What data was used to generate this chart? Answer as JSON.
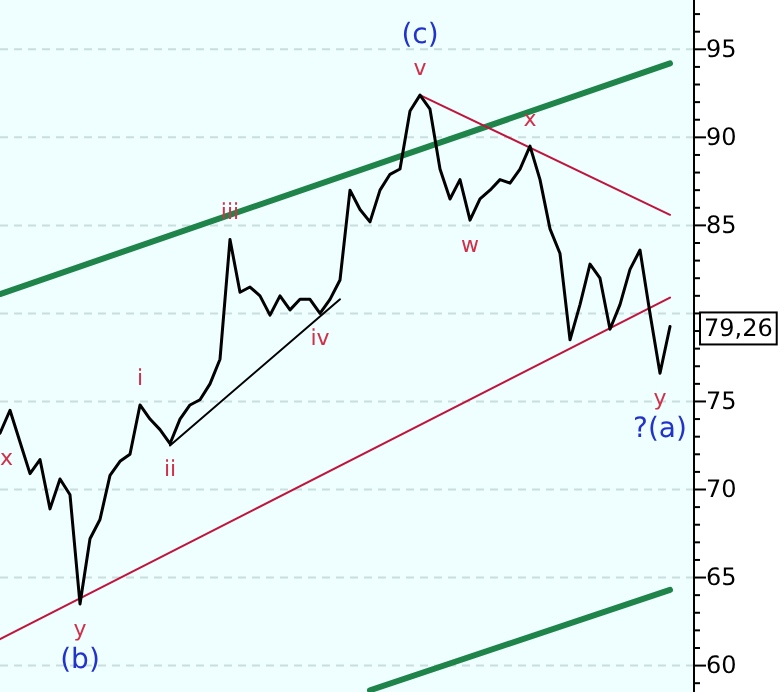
{
  "chart_data": {
    "type": "line",
    "categories": [
      null,
      null,
      null,
      null,
      null,
      null,
      null,
      null,
      null,
      null,
      null,
      null,
      null,
      null,
      null,
      null,
      null,
      null,
      null,
      null,
      null,
      null,
      null,
      null,
      null,
      null,
      null,
      null,
      null,
      null,
      null,
      null,
      null,
      null,
      null,
      null,
      null,
      null,
      null,
      null,
      null,
      null,
      null,
      null,
      null,
      null,
      null,
      null,
      null,
      null,
      null,
      null,
      null,
      null,
      null,
      null,
      null,
      null,
      null,
      null,
      null,
      null,
      null,
      null,
      null,
      null,
      null,
      null
    ],
    "ylim": [
      58.5,
      97.8
    ],
    "yticks": [
      {
        "value": 59,
        "label": null
      },
      60,
      {
        "value": 61,
        "label": null
      },
      {
        "value": 62,
        "label": null
      },
      {
        "value": 63,
        "label": null
      },
      {
        "value": 64,
        "label": null
      },
      65,
      {
        "value": 66,
        "label": null
      },
      {
        "value": 67,
        "label": null
      },
      {
        "value": 68,
        "label": null
      },
      {
        "value": 69,
        "label": null
      },
      70,
      {
        "value": 71,
        "label": null
      },
      {
        "value": 72,
        "label": null
      },
      {
        "value": 73,
        "label": null
      },
      {
        "value": 74,
        "label": null
      },
      75,
      {
        "value": 76,
        "label": null
      },
      {
        "value": 77,
        "label": null
      },
      {
        "value": 78,
        "label": null
      },
      {
        "value": 79,
        "label": null
      },
      {
        "value": 80,
        "label": null
      },
      {
        "value": 81,
        "label": null
      },
      {
        "value": 82,
        "label": null
      },
      {
        "value": 83,
        "label": null
      },
      {
        "value": 84,
        "label": null
      },
      85,
      {
        "value": 86,
        "label": null
      },
      {
        "value": 87,
        "label": null
      },
      {
        "value": 88,
        "label": null
      },
      {
        "value": 89,
        "label": null
      },
      90,
      {
        "value": 91,
        "label": null
      },
      {
        "value": 92,
        "label": null
      },
      {
        "value": 93,
        "label": null
      },
      {
        "value": 94,
        "label": null
      },
      95,
      {
        "value": 96,
        "label": null
      },
      {
        "value": 97,
        "label": null
      }
    ],
    "tick_labels": "y",
    "grid": "y",
    "series": [
      {
        "color": "#000000",
        "values": [
          73.2,
          74.5,
          72.7,
          70.9,
          71.7,
          68.9,
          70.6,
          69.7,
          63.5,
          67.2,
          68.3,
          70.8,
          71.6,
          72.0,
          74.8,
          74.0,
          73.4,
          72.6,
          74.0,
          74.8,
          75.1,
          76.0,
          77.4,
          84.2,
          81.2,
          81.5,
          81.0,
          79.9,
          81.0,
          80.2,
          80.8,
          80.8,
          80.0,
          80.8,
          81.9,
          87.0,
          85.9,
          85.2,
          87.0,
          87.9,
          88.2,
          91.5,
          92.4,
          91.6,
          88.2,
          86.5,
          87.6,
          85.3,
          86.5,
          87.0,
          87.6,
          87.4,
          88.2,
          89.5,
          87.6,
          84.8,
          83.4,
          78.5,
          80.5,
          82.8,
          82.0,
          79.1,
          80.5,
          82.5,
          83.6,
          80.0,
          76.6,
          79.26
        ],
        "value_labels": [
          "x",
          null,
          null,
          null,
          null,
          null,
          null,
          null,
          "y\n(b)",
          null,
          null,
          null,
          null,
          null,
          "i",
          null,
          null,
          "ii",
          null,
          null,
          null,
          null,
          null,
          "iii",
          null,
          null,
          null,
          null,
          null,
          null,
          null,
          null,
          "iv",
          null,
          null,
          null,
          null,
          null,
          null,
          null,
          null,
          null,
          "(c)\nv",
          null,
          null,
          null,
          null,
          "w",
          null,
          null,
          null,
          null,
          null,
          "x",
          null,
          null,
          null,
          null,
          null,
          null,
          null,
          null,
          null,
          null,
          null,
          null,
          "y\n?(a)",
          null
        ]
      },
      {
        "type": "line",
        "color": "#1e8449",
        "values": [
          81.1,
          null,
          null,
          null,
          null,
          null,
          null,
          null,
          null,
          null,
          null,
          null,
          null,
          null,
          null,
          null,
          null,
          null,
          null,
          null,
          null,
          null,
          null,
          null,
          null,
          null,
          null,
          null,
          null,
          null,
          null,
          null,
          null,
          null,
          null,
          null,
          null,
          null,
          null,
          null,
          null,
          null,
          null,
          null,
          null,
          null,
          null,
          null,
          null,
          null,
          null,
          null,
          null,
          null,
          null,
          null,
          null,
          null,
          null,
          null,
          null,
          null,
          null,
          null,
          null,
          null,
          null,
          94.2
        ]
      },
      {
        "type": "line",
        "color": "#1e8449",
        "values": [
          null,
          null,
          null,
          null,
          null,
          null,
          null,
          null,
          null,
          null,
          null,
          null,
          null,
          null,
          null,
          null,
          null,
          null,
          null,
          null,
          null,
          null,
          null,
          null,
          null,
          null,
          null,
          null,
          null,
          null,
          null,
          null,
          null,
          null,
          null,
          null,
          null,
          58.6,
          null,
          null,
          null,
          null,
          null,
          null,
          null,
          null,
          null,
          null,
          null,
          null,
          null,
          null,
          null,
          null,
          null,
          null,
          null,
          null,
          null,
          null,
          null,
          null,
          null,
          null,
          null,
          null,
          null,
          64.3
        ]
      },
      {
        "type": "line",
        "color": "#c0143c",
        "values": [
          61.5,
          null,
          null,
          null,
          null,
          null,
          null,
          null,
          null,
          null,
          null,
          null,
          null,
          null,
          null,
          null,
          null,
          null,
          null,
          null,
          null,
          null,
          null,
          null,
          null,
          null,
          null,
          null,
          null,
          null,
          null,
          null,
          null,
          null,
          null,
          null,
          null,
          null,
          null,
          null,
          null,
          null,
          null,
          null,
          null,
          null,
          null,
          null,
          null,
          null,
          null,
          null,
          null,
          null,
          null,
          null,
          null,
          null,
          null,
          null,
          null,
          null,
          null,
          null,
          null,
          null,
          null,
          80.9
        ]
      },
      {
        "type": "line",
        "color": "#c0143c",
        "values": [
          null,
          null,
          null,
          null,
          null,
          null,
          null,
          null,
          null,
          null,
          null,
          null,
          null,
          null,
          null,
          null,
          null,
          null,
          null,
          null,
          null,
          null,
          null,
          null,
          null,
          null,
          null,
          null,
          null,
          null,
          null,
          null,
          null,
          null,
          null,
          null,
          null,
          null,
          null,
          null,
          null,
          null,
          92.4,
          null,
          null,
          null,
          null,
          null,
          null,
          null,
          null,
          null,
          null,
          null,
          null,
          null,
          null,
          null,
          null,
          null,
          null,
          null,
          null,
          null,
          null,
          null,
          null,
          85.6
        ]
      },
      {
        "type": "line",
        "color": "#000000",
        "values": [
          null,
          null,
          null,
          null,
          null,
          null,
          null,
          null,
          null,
          null,
          null,
          null,
          null,
          null,
          null,
          null,
          null,
          72.5,
          null,
          null,
          null,
          null,
          null,
          null,
          null,
          null,
          null,
          null,
          null,
          null,
          null,
          null,
          null,
          null,
          80.8,
          null,
          null,
          null,
          null,
          null,
          null,
          null,
          null,
          null,
          null,
          null,
          null,
          null,
          null,
          null,
          null,
          null,
          null,
          null,
          null,
          null,
          null,
          null,
          null,
          null,
          null,
          null,
          null,
          null,
          null,
          null,
          null,
          null
        ]
      }
    ],
    "annotations": [
      {
        "text": "79,26",
        "y": 79.26
      }
    ]
  }
}
